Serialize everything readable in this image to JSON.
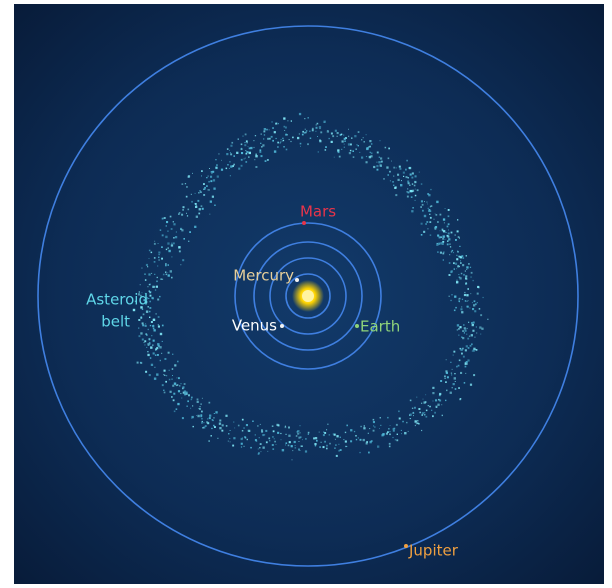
{
  "labels": {
    "mars": "Mars",
    "mercury": "Mercury",
    "venus": "Venus",
    "earth": "Earth",
    "asteroid_belt": [
      "Asteroid",
      "belt"
    ],
    "jupiter": "Jupiter"
  }
}
